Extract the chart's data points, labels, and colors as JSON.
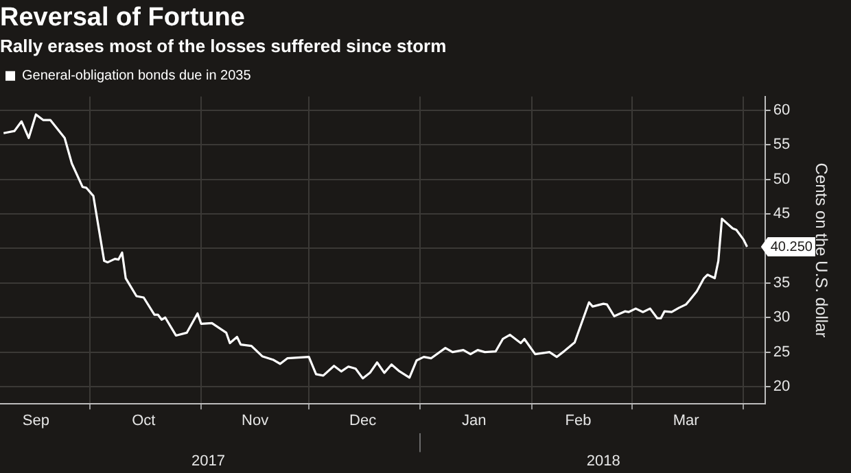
{
  "chart_data": {
    "type": "line",
    "title": "Reversal of Fortune",
    "subtitle": "Rally erases most of the losses suffered since storm",
    "ylabel": "Cents on the U.S. dollar",
    "x": [
      "2017-09-07",
      "2017-09-10",
      "2017-09-12",
      "2017-09-14",
      "2017-09-16",
      "2017-09-18",
      "2017-09-20",
      "2017-09-24",
      "2017-09-26",
      "2017-09-29",
      "2017-09-30",
      "2017-10-02",
      "2017-10-05",
      "2017-10-06",
      "2017-10-08",
      "2017-10-09",
      "2017-10-10",
      "2017-10-11",
      "2017-10-14",
      "2017-10-16",
      "2017-10-19",
      "2017-10-20",
      "2017-10-21",
      "2017-10-22",
      "2017-10-25",
      "2017-10-28",
      "2017-10-31",
      "2017-11-01",
      "2017-11-04",
      "2017-11-08",
      "2017-11-09",
      "2017-11-11",
      "2017-11-12",
      "2017-11-15",
      "2017-11-18",
      "2017-11-21",
      "2017-11-23",
      "2017-11-25",
      "2017-12-01",
      "2017-12-03",
      "2017-12-05",
      "2017-12-08",
      "2017-12-10",
      "2017-12-12",
      "2017-12-14",
      "2017-12-16",
      "2017-12-18",
      "2017-12-20",
      "2017-12-22",
      "2017-12-24",
      "2017-12-26",
      "2017-12-29",
      "2017-12-31",
      "2018-01-02",
      "2018-01-04",
      "2018-01-08",
      "2018-01-10",
      "2018-01-13",
      "2018-01-15",
      "2018-01-17",
      "2018-01-19",
      "2018-01-22",
      "2018-01-24",
      "2018-01-26",
      "2018-01-29",
      "2018-01-30",
      "2018-02-02",
      "2018-02-06",
      "2018-02-08",
      "2018-02-10",
      "2018-02-13",
      "2018-02-17",
      "2018-02-18",
      "2018-02-21",
      "2018-02-22",
      "2018-02-24",
      "2018-02-27",
      "2018-02-28",
      "2018-03-02",
      "2018-03-04",
      "2018-03-06",
      "2018-03-08",
      "2018-03-09",
      "2018-03-10",
      "2018-03-12",
      "2018-03-14",
      "2018-03-16",
      "2018-03-17",
      "2018-03-19",
      "2018-03-21",
      "2018-03-22",
      "2018-03-24",
      "2018-03-25",
      "2018-03-26",
      "2018-03-29",
      "2018-03-30",
      "2018-04-01",
      "2018-04-02"
    ],
    "series": [
      {
        "name": "General-obligation bonds due in 2035",
        "color": "#ffffff",
        "values": [
          56.7,
          57.0,
          58.4,
          56.0,
          59.4,
          58.6,
          58.6,
          56.0,
          52.3,
          48.9,
          48.8,
          47.6,
          38.2,
          38.0,
          38.5,
          38.4,
          39.4,
          35.7,
          33.1,
          32.9,
          30.4,
          30.4,
          29.7,
          30.0,
          27.4,
          27.8,
          30.6,
          29.1,
          29.2,
          27.8,
          26.3,
          27.2,
          26.1,
          25.9,
          24.4,
          23.9,
          23.3,
          24.1,
          24.3,
          21.8,
          21.6,
          23.0,
          22.2,
          22.9,
          22.6,
          21.2,
          22.0,
          23.5,
          22.0,
          23.2,
          22.3,
          21.3,
          23.8,
          24.3,
          24.1,
          25.6,
          25.0,
          25.3,
          24.7,
          25.3,
          25.0,
          25.1,
          26.9,
          27.5,
          26.3,
          26.9,
          24.7,
          25.0,
          24.3,
          25.1,
          26.4,
          32.2,
          31.6,
          32.0,
          31.9,
          30.2,
          30.9,
          30.8,
          31.3,
          30.8,
          31.3,
          29.9,
          29.9,
          30.9,
          30.8,
          31.4,
          31.9,
          32.5,
          33.8,
          35.7,
          36.2,
          35.7,
          38.2,
          44.3,
          42.9,
          42.7,
          41.3,
          40.25
        ],
        "value_labels": [
          null,
          null,
          null,
          null,
          null,
          null,
          null,
          null,
          null,
          null,
          null,
          null,
          null,
          null,
          null,
          null,
          null,
          null,
          null,
          null,
          null,
          null,
          null,
          null,
          null,
          null,
          null,
          null,
          null,
          null,
          null,
          null,
          null,
          null,
          null,
          null,
          null,
          null,
          null,
          null,
          null,
          null,
          null,
          null,
          null,
          null,
          null,
          null,
          null,
          null,
          null,
          null,
          null,
          null,
          null,
          null,
          null,
          null,
          null,
          null,
          null,
          null,
          null,
          null,
          null,
          null,
          null,
          null,
          null,
          null,
          null,
          null,
          null,
          null,
          null,
          null,
          null,
          null,
          null,
          null,
          null,
          null,
          null,
          null,
          null,
          null,
          null,
          null,
          null,
          null,
          null,
          null,
          null,
          null,
          null,
          null,
          null,
          "40.250"
        ]
      }
    ],
    "xlim": [
      "2017-09-06",
      "2018-04-07"
    ],
    "xticks": [
      {
        "value": "2017-09-16",
        "label": "Sep"
      },
      {
        "value": "2017-10-01",
        "label": null
      },
      {
        "value": "2017-10-16",
        "label": "Oct"
      },
      {
        "value": "2017-11-01",
        "label": null
      },
      {
        "value": "2017-11-16",
        "label": "Nov"
      },
      {
        "value": "2017-12-01",
        "label": null
      },
      {
        "value": "2017-12-16",
        "label": "Dec"
      },
      {
        "value": "2018-01-01",
        "label": null
      },
      {
        "value": "2018-01-16",
        "label": "Jan"
      },
      {
        "value": "2018-02-01",
        "label": null
      },
      {
        "value": "2018-02-14",
        "label": "Feb"
      },
      {
        "value": "2018-03-01",
        "label": null
      },
      {
        "value": "2018-03-16",
        "label": "Mar"
      },
      {
        "value": "2018-04-01",
        "label": null
      }
    ],
    "x2lim": [
      "2017-09-06",
      "2018-04-07"
    ],
    "x2ticks": [
      {
        "value": "2017-11-03",
        "label": "2017"
      },
      {
        "value": "2018-01-01",
        "label": null
      },
      {
        "value": "2018-02-21",
        "label": "2018"
      }
    ],
    "ylim": [
      17.5,
      62
    ],
    "yticks": [
      20,
      25,
      30,
      35,
      {
        "value": 40,
        "label": null
      },
      45,
      50,
      55,
      60
    ],
    "grid": true,
    "legend": "top left",
    "marker": "none",
    "line_style": "solid"
  }
}
